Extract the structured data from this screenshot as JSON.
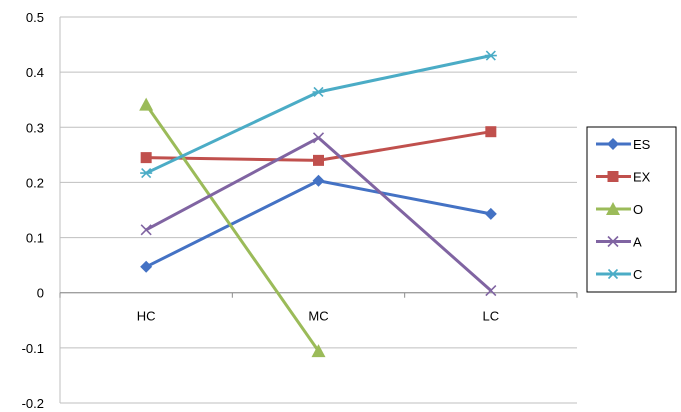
{
  "chart_data": {
    "type": "line",
    "title": "",
    "xlabel": "",
    "ylabel": "",
    "categories": [
      "HC",
      "MC",
      "LC"
    ],
    "ylim": [
      -0.2,
      0.5
    ],
    "yticks": [
      0.5,
      0.4,
      0.3,
      0.2,
      0.1,
      0,
      -0.1,
      -0.2
    ],
    "ytick_labels": [
      "0.5",
      "0.4",
      "0.3",
      "0.2",
      "0.1",
      "0",
      "-0.1",
      "-0.2"
    ],
    "grid": "horizontal",
    "legend_position": "right",
    "series": [
      {
        "name": "ES",
        "values": [
          0.047,
          0.203,
          0.143
        ],
        "color": "#4472C4",
        "marker": "diamond"
      },
      {
        "name": "EX",
        "values": [
          0.245,
          0.24,
          0.292
        ],
        "color": "#C0504D",
        "marker": "square"
      },
      {
        "name": "O",
        "values": [
          0.341,
          -0.106,
          null
        ],
        "color": "#9BBB59",
        "marker": "triangle"
      },
      {
        "name": "A",
        "values": [
          0.114,
          0.281,
          0.004
        ],
        "color": "#8064A2",
        "marker": "x"
      },
      {
        "name": "C",
        "values": [
          0.217,
          0.364,
          0.43
        ],
        "color": "#4BACC6",
        "marker": "asterisk"
      }
    ]
  }
}
